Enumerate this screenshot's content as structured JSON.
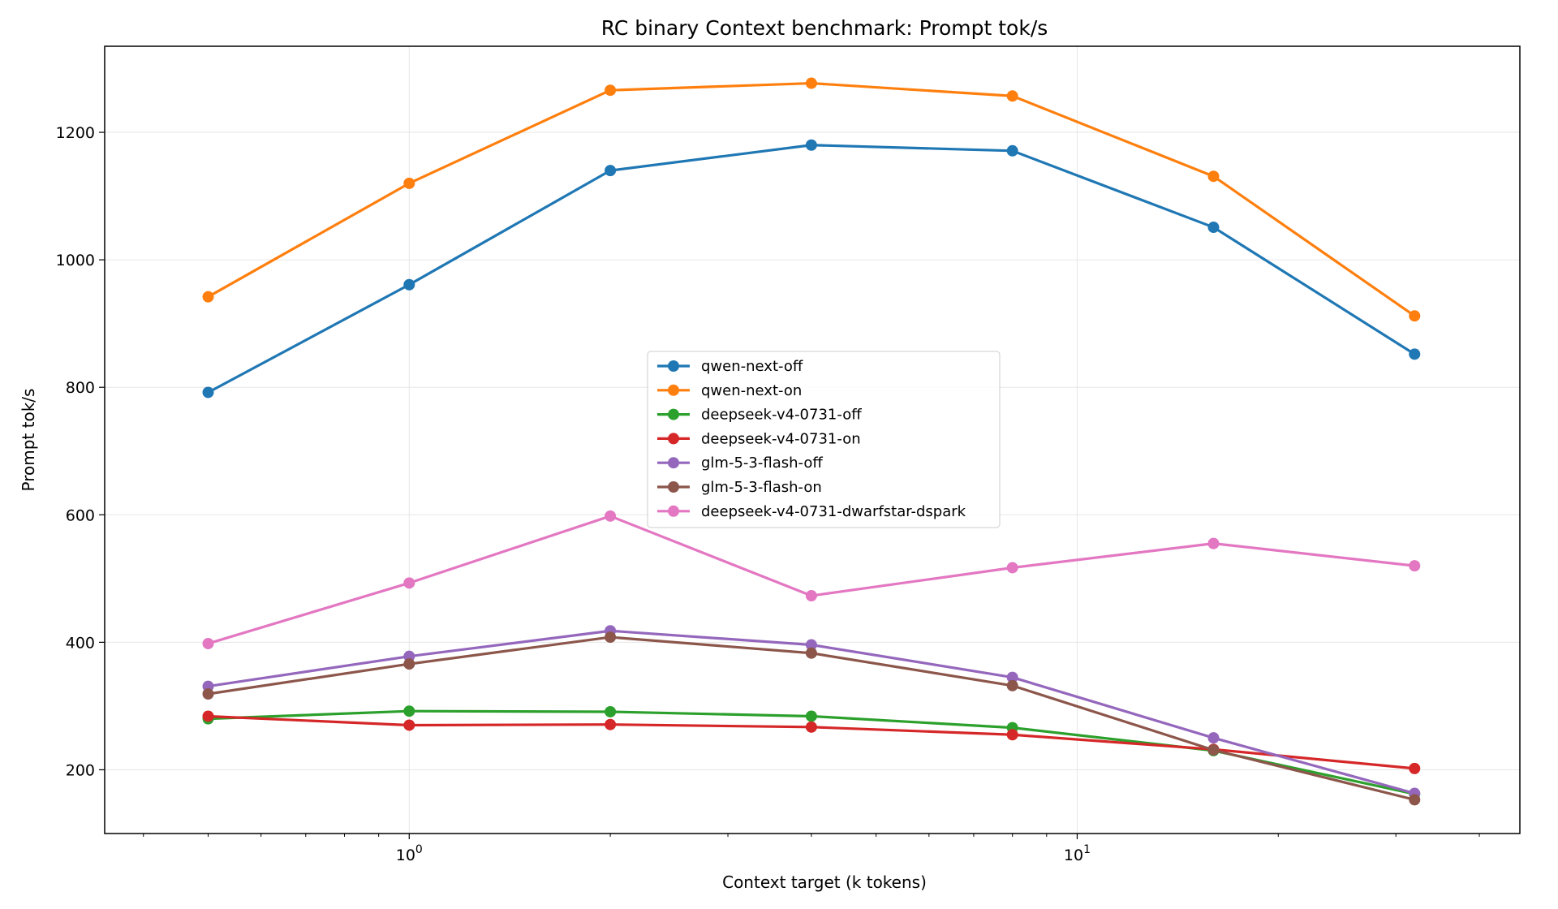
{
  "chart_data": {
    "type": "line",
    "title": "RC binary Context benchmark: Prompt tok/s",
    "xlabel": "Context target (k tokens)",
    "ylabel": "Prompt tok/s",
    "xscale": "log",
    "xlim": [
      0.35,
      46
    ],
    "ylim": [
      100,
      1335
    ],
    "x": [
      0.5,
      1,
      2,
      4,
      8,
      16,
      32
    ],
    "x_ticks": [
      {
        "value": 1,
        "base": "10",
        "exp": "0"
      },
      {
        "value": 10,
        "base": "10",
        "exp": "1"
      }
    ],
    "y_ticks": [
      200,
      400,
      600,
      800,
      1000,
      1200
    ],
    "grid": true,
    "legend_position": "center",
    "series": [
      {
        "name": "qwen-next-off",
        "color": "#1f77b4",
        "values": [
          792,
          961,
          1140,
          1180,
          1171,
          1051,
          852
        ]
      },
      {
        "name": "qwen-next-on",
        "color": "#ff7f0e",
        "values": [
          942,
          1120,
          1266,
          1277,
          1257,
          1131,
          912
        ]
      },
      {
        "name": "deepseek-v4-0731-off",
        "color": "#2ca02c",
        "values": [
          280,
          292,
          291,
          284,
          266,
          230,
          162
        ]
      },
      {
        "name": "deepseek-v4-0731-on",
        "color": "#d62728",
        "values": [
          284,
          270,
          271,
          267,
          255,
          232,
          202
        ]
      },
      {
        "name": "glm-5-3-flash-off",
        "color": "#9467bd",
        "values": [
          331,
          378,
          418,
          396,
          345,
          250,
          163
        ]
      },
      {
        "name": "glm-5-3-flash-on",
        "color": "#8c564b",
        "values": [
          319,
          366,
          408,
          383,
          332,
          231,
          153
        ]
      },
      {
        "name": "deepseek-v4-0731-dwarfstar-dspark",
        "color": "#e377c2",
        "values": [
          398,
          493,
          598,
          473,
          517,
          555,
          520
        ]
      }
    ]
  }
}
